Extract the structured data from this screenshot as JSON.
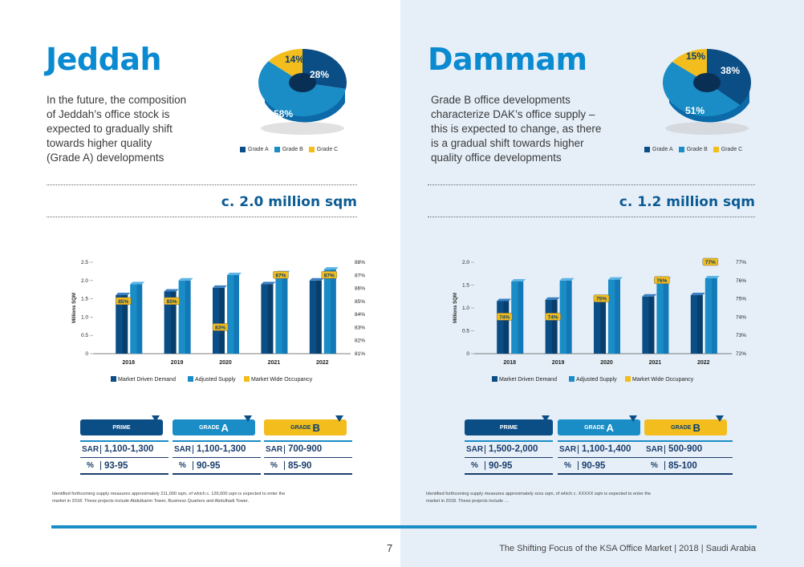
{
  "left": {
    "city": "Jeddah",
    "intro": [
      "In the future, the composition",
      "of Jeddah’s office stock is",
      "expected to gradually shift",
      "towards higher quality",
      "(Grade A) developments"
    ],
    "donut": {
      "grade_a": "28%",
      "grade_b": "58%",
      "grade_c": "14%",
      "values": [
        28,
        58,
        14
      ]
    },
    "area": "c. 2.0 million sqm",
    "chart": {
      "years": [
        "2018",
        "2019",
        "2020",
        "2021",
        "2022"
      ],
      "demand": [
        1.6,
        1.7,
        1.8,
        1.9,
        2.0
      ],
      "supply": [
        1.9,
        2.0,
        2.15,
        2.2,
        2.3
      ],
      "occupancy_labels": [
        "85%",
        "85%",
        "83%",
        "87%",
        "87%"
      ],
      "left_ticks": [
        "2.5",
        "2.0",
        "1.5",
        "1.0",
        "0.5",
        "0"
      ],
      "right_ticks": [
        "88%",
        "87%",
        "86%",
        "85%",
        "84%",
        "83%",
        "82%",
        "81%"
      ],
      "ylabel": "Millions SQM"
    },
    "rents": {
      "prime": {
        "sar": "1,100-1,300",
        "pct": "93-95"
      },
      "grade_a": {
        "sar": "1,100-1,300",
        "pct": "90-95"
      },
      "grade_b": {
        "sar": "700-900",
        "pct": "85-90"
      }
    },
    "note": [
      "Identified forthcoming supply measures approximately 211,000 sqm, of which c. 126,000 sqm is expected to enter the",
      "market in 2018.  These projects include Abdulkarim Tower, Business Quarters and Abdulhadi Tower."
    ]
  },
  "right": {
    "city": "Dammam",
    "intro": [
      "Grade B office developments",
      "characterize DAK’s office supply –",
      "this is expected to change, as there",
      "is a gradual shift towards higher",
      "quality office developments"
    ],
    "donut": {
      "grade_a": "38%",
      "grade_b": "51%",
      "grade_c": "15%",
      "values": [
        38,
        51,
        15
      ]
    },
    "area": "c. 1.2 million sqm",
    "chart": {
      "years": [
        "2018",
        "2019",
        "2020",
        "2021",
        "2022"
      ],
      "demand": [
        1.15,
        1.18,
        1.22,
        1.25,
        1.28
      ],
      "supply": [
        1.58,
        1.6,
        1.62,
        1.62,
        1.65
      ],
      "occupancy_labels": [
        "74%",
        "74%",
        "75%",
        "76%",
        "77%"
      ],
      "left_ticks": [
        "2.0",
        "1.5",
        "1.0",
        "0.5",
        "0"
      ],
      "right_ticks": [
        "77%",
        "76%",
        "75%",
        "74%",
        "73%",
        "72%"
      ],
      "ylabel": "Millions SQM"
    },
    "rents": {
      "prime": {
        "sar": "1,500-2,000",
        "pct": "90-95"
      },
      "grade_a": {
        "sar": "1,100-1,400",
        "pct": "90-95"
      },
      "grade_b": {
        "sar": "500-900",
        "pct": "85-100"
      }
    },
    "note": [
      "Identified forthcoming supply measures approximately xxxx sqm, of which c. XXXXX sqm is expected to enter the",
      "market in 2018.  These projects include …"
    ]
  },
  "legend": {
    "grade_a": "Grade A",
    "grade_b": "Grade B",
    "grade_c": "Grade C"
  },
  "chart_legend": {
    "demand": "Market Driven Demand",
    "supply": "Adjusted Supply",
    "occupancy": "Market Wide Occupancy"
  },
  "tabs": {
    "prime": "PRIME",
    "grade": "GRADE",
    "a": "A",
    "b": "B"
  },
  "units": {
    "sar": "SAR",
    "pct": "%"
  },
  "footer": {
    "page": "7",
    "title": "The Shifting Focus of the KSA Office Market | 2018 | Saudi Arabia"
  },
  "colors": {
    "grade_a": "#0b4e86",
    "grade_b": "#1a8dc6",
    "grade_c": "#f2bd1d",
    "title": "#0a8ad0"
  },
  "chart_data": [
    {
      "type": "bar",
      "title": "",
      "categories": [
        "2018",
        "2019",
        "2020",
        "2021",
        "2022"
      ],
      "series": [
        {
          "name": "Market Driven Demand",
          "values": [
            1.6,
            1.7,
            1.8,
            1.9,
            2.0
          ]
        },
        {
          "name": "Adjusted Supply",
          "values": [
            1.9,
            2.0,
            2.15,
            2.2,
            2.3
          ]
        },
        {
          "name": "Market Wide Occupancy",
          "values": [
            85,
            85,
            83,
            87,
            87
          ]
        }
      ],
      "ylabel": "Millions SQM",
      "ylim": [
        0,
        2.5
      ],
      "y2lim": [
        81,
        88
      ]
    },
    {
      "type": "bar",
      "title": "",
      "categories": [
        "2018",
        "2019",
        "2020",
        "2021",
        "2022"
      ],
      "series": [
        {
          "name": "Market Driven Demand",
          "values": [
            1.15,
            1.18,
            1.22,
            1.25,
            1.28
          ]
        },
        {
          "name": "Adjusted Supply",
          "values": [
            1.58,
            1.6,
            1.62,
            1.62,
            1.65
          ]
        },
        {
          "name": "Market Wide Occupancy",
          "values": [
            74,
            74,
            75,
            76,
            77
          ]
        }
      ],
      "ylabel": "Millions SQM",
      "ylim": [
        0,
        2.0
      ],
      "y2lim": [
        72,
        77
      ]
    }
  ]
}
